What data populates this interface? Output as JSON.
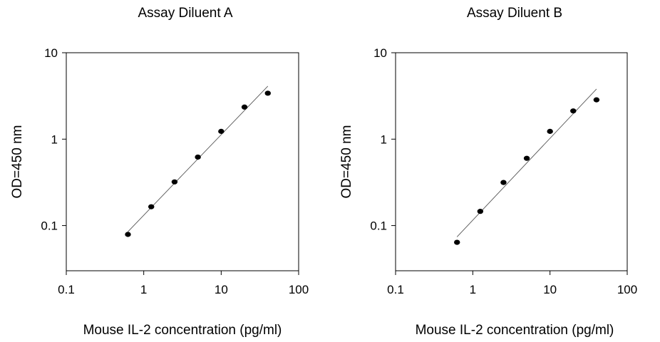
{
  "chart_data": [
    {
      "type": "scatter",
      "title": "Assay Diluent A",
      "xlabel": "Mouse IL-2 concentration (pg/ml)",
      "ylabel": "OD=450 nm",
      "x_scale": "log",
      "y_scale": "log",
      "xlim": [
        0.1,
        100
      ],
      "ylim": [
        0.03,
        10
      ],
      "x_ticks": [
        0.1,
        1,
        10,
        100
      ],
      "x_tick_labels": [
        "0.1",
        "1",
        "10",
        "100"
      ],
      "y_ticks": [
        0.1,
        1,
        10
      ],
      "y_tick_labels": [
        "0.1",
        "1",
        "10"
      ],
      "grid": false,
      "series": [
        {
          "x": [
            0.625,
            1.25,
            2.5,
            5,
            10,
            20,
            40
          ],
          "y": [
            0.079,
            0.165,
            0.32,
            0.62,
            1.23,
            2.35,
            3.4
          ],
          "color": "#000000"
        }
      ],
      "fit_line": {
        "x": [
          0.625,
          40
        ],
        "y": [
          0.085,
          4.1
        ]
      }
    },
    {
      "type": "scatter",
      "title": "Assay Diluent B",
      "xlabel": "Mouse IL-2 concentration (pg/ml)",
      "ylabel": "OD=450 nm",
      "x_scale": "log",
      "y_scale": "log",
      "xlim": [
        0.1,
        100
      ],
      "ylim": [
        0.03,
        10
      ],
      "x_ticks": [
        0.1,
        1,
        10,
        100
      ],
      "x_tick_labels": [
        "0.1",
        "1",
        "10",
        "100"
      ],
      "y_ticks": [
        0.1,
        1,
        10
      ],
      "y_tick_labels": [
        "0.1",
        "1",
        "10"
      ],
      "grid": false,
      "series": [
        {
          "x": [
            0.625,
            1.25,
            2.5,
            5,
            10,
            20,
            40
          ],
          "y": [
            0.064,
            0.146,
            0.315,
            0.6,
            1.23,
            2.12,
            2.85
          ],
          "color": "#000000"
        }
      ],
      "fit_line": {
        "x": [
          0.625,
          40
        ],
        "y": [
          0.074,
          3.8
        ]
      }
    }
  ]
}
